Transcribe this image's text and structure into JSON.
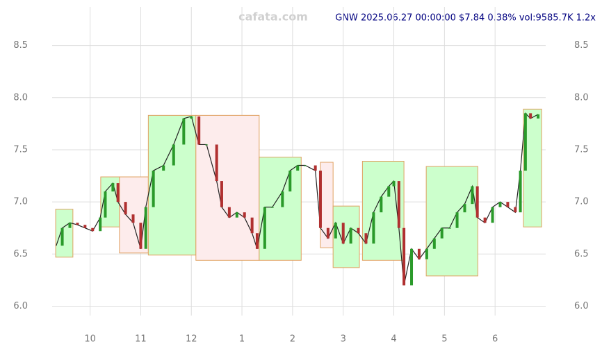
{
  "chart_data": {
    "type": "line",
    "title": "GNW 2025.06.27 00:00:00 $7.84 0.38% vol:9585.7K 1.2x",
    "watermark": "cafata.com",
    "xlim": [
      9.25,
      19.0
    ],
    "xticks": [
      10,
      11,
      12,
      {
        "value": 13,
        "label": "1"
      },
      {
        "value": 14,
        "label": "2"
      },
      {
        "value": 15,
        "label": "3"
      },
      {
        "value": 16,
        "label": "4"
      },
      {
        "value": 17,
        "label": "5"
      },
      {
        "value": 18,
        "label": "6"
      }
    ],
    "ylim": [
      5.91,
      8.87
    ],
    "yticks": [
      {
        "value": 6.0,
        "label": "6.0"
      },
      {
        "value": 6.5,
        "label": "6.5"
      },
      {
        "value": 7.0,
        "label": "7.0"
      },
      {
        "value": 7.5,
        "label": "7.5"
      },
      {
        "value": 8.0,
        "label": "8.0"
      },
      {
        "value": 8.5,
        "label": "8.5"
      }
    ],
    "grid": true,
    "series": [
      {
        "name": "GNW",
        "color": "#222222",
        "x": [
          9.33,
          9.45,
          9.6,
          9.75,
          9.9,
          10.05,
          10.2,
          10.3,
          10.45,
          10.55,
          10.7,
          10.85,
          11.0,
          11.1,
          11.25,
          11.45,
          11.65,
          11.85,
          12.0,
          12.15,
          12.3,
          12.5,
          12.6,
          12.75,
          12.9,
          13.05,
          13.2,
          13.3,
          13.45,
          13.6,
          13.8,
          13.95,
          14.1,
          14.25,
          14.45,
          14.55,
          14.7,
          14.85,
          15.0,
          15.15,
          15.3,
          15.45,
          15.6,
          15.75,
          15.9,
          16.0,
          16.1,
          16.2,
          16.35,
          16.5,
          16.65,
          16.8,
          16.95,
          17.1,
          17.25,
          17.4,
          17.55,
          17.65,
          17.8,
          17.95,
          18.1,
          18.25,
          18.4,
          18.5,
          18.6,
          18.7,
          18.85
        ],
        "values": [
          6.58,
          6.75,
          6.8,
          6.78,
          6.75,
          6.72,
          6.85,
          7.1,
          7.18,
          7.0,
          6.88,
          6.8,
          6.55,
          6.95,
          7.3,
          7.35,
          7.55,
          7.8,
          7.82,
          7.55,
          7.55,
          7.2,
          6.95,
          6.85,
          6.9,
          6.85,
          6.7,
          6.55,
          6.95,
          6.95,
          7.1,
          7.3,
          7.35,
          7.35,
          7.3,
          6.75,
          6.65,
          6.8,
          6.6,
          6.75,
          6.7,
          6.6,
          6.9,
          7.05,
          7.15,
          7.2,
          6.75,
          6.2,
          6.55,
          6.45,
          6.55,
          6.65,
          6.75,
          6.75,
          6.9,
          6.98,
          7.15,
          6.85,
          6.8,
          6.95,
          7.0,
          6.95,
          6.9,
          7.3,
          7.85,
          7.8,
          7.84
        ]
      }
    ],
    "boxes": [
      {
        "x": [
          9.32,
          9.66
        ],
        "y": [
          6.47,
          6.93
        ],
        "color": "#ccffcc"
      },
      {
        "x": [
          10.21,
          10.58
        ],
        "y": [
          6.76,
          7.24
        ],
        "color": "#ccffcc"
      },
      {
        "x": [
          10.58,
          11.15
        ],
        "y": [
          6.51,
          7.24
        ],
        "color": "#fdecec"
      },
      {
        "x": [
          11.15,
          12.09
        ],
        "y": [
          6.49,
          7.83
        ],
        "color": "#ccffcc"
      },
      {
        "x": [
          12.09,
          13.34
        ],
        "y": [
          6.44,
          7.83
        ],
        "color": "#fdecec"
      },
      {
        "x": [
          13.34,
          14.17
        ],
        "y": [
          6.44,
          7.43
        ],
        "color": "#ccffcc"
      },
      {
        "x": [
          14.55,
          14.8
        ],
        "y": [
          6.56,
          7.38
        ],
        "color": "#fdecec"
      },
      {
        "x": [
          14.8,
          15.32
        ],
        "y": [
          6.37,
          6.96
        ],
        "color": "#ccffcc"
      },
      {
        "x": [
          15.38,
          16.2
        ],
        "y": [
          6.44,
          7.39
        ],
        "color": "#ccffcc"
      },
      {
        "x": [
          16.64,
          17.66
        ],
        "y": [
          6.29,
          7.34
        ],
        "color": "#ccffcc"
      },
      {
        "x": [
          18.56,
          18.92
        ],
        "y": [
          6.76,
          7.89
        ],
        "color": "#ccffcc"
      }
    ]
  }
}
